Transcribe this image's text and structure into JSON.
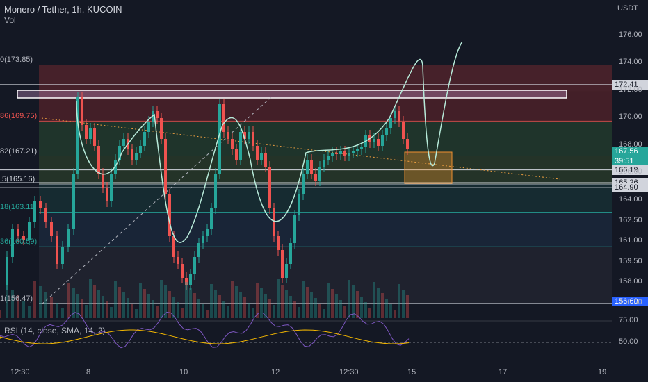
{
  "header": {
    "title": "Monero / Tether, 1h, KUCOIN",
    "volume_label": "Vol"
  },
  "currency_label": "USDT",
  "rsi_label": "RSI (14, close, SMA, 14, 2)",
  "colors": {
    "background": "#141824",
    "up": "#26a69a",
    "down": "#ef5350",
    "drawing": "#b7ead9",
    "rsi_line": "#7e57c2",
    "rsi_sma": "#f5b800"
  },
  "chart_data": {
    "type": "candlestick",
    "y_axis": {
      "ticks": [
        "176.00",
        "174.00",
        "172.00",
        "170.00",
        "168.00",
        "166.00",
        "164.00",
        "162.50",
        "161.00",
        "159.50",
        "158.00",
        "156.50"
      ]
    },
    "x_axis": {
      "ticks": [
        "12:30",
        "8",
        "10",
        "12",
        "12:30",
        "15",
        "17",
        "19"
      ]
    },
    "fib_levels": [
      {
        "text": "0(173.85)",
        "color": "#b2b5be",
        "price": 173.85
      },
      {
        "text": "86(169.75)",
        "color": "#ef5350",
        "price": 169.75
      },
      {
        "text": "82(167.21)",
        "color": "#d1d4dc",
        "price": 167.21
      },
      {
        "text": ".5(165.16)",
        "color": "#d1d4dc",
        "price": 165.16
      },
      {
        "text": "18(163.11)",
        "color": "#26a69a",
        "price": 163.11
      },
      {
        "text": "36(160.59)",
        "color": "#26a69a",
        "price": 160.59
      },
      {
        "text": "1(156.47)",
        "color": "#b2b5be",
        "price": 156.47
      }
    ],
    "price_tags": [
      {
        "text": "172.41",
        "bg": "#d1d4dc",
        "fg": "#131722",
        "price": 172.41
      },
      {
        "text": "167.56",
        "bg": "#26a69a",
        "fg": "#ffffff",
        "price": 167.56
      },
      {
        "text": "39:51",
        "bg": "#26a69a",
        "fg": "#ffffff",
        "price": 167.56
      },
      {
        "text": "166.19",
        "bg": "#d1d4dc",
        "fg": "#131722",
        "price": 166.19
      },
      {
        "text": "165.26",
        "bg": "#d1d4dc",
        "fg": "#131722",
        "price": 165.26
      },
      {
        "text": "164.90",
        "bg": "#d1d4dc",
        "fg": "#131722",
        "price": 164.9
      },
      {
        "text": "156.60",
        "bg": "#2962ff",
        "fg": "#ffffff",
        "price": 156.6
      }
    ],
    "rsi_axis": {
      "ticks": [
        "75.00",
        "50.00"
      ]
    }
  }
}
